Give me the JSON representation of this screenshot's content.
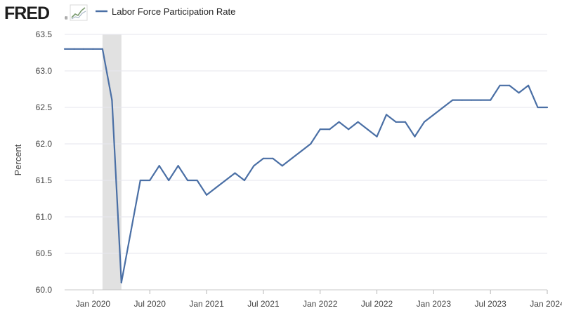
{
  "header": {
    "logo_text": "FRED",
    "logo_reg": "®"
  },
  "chart_data": {
    "type": "line",
    "title": "",
    "xlabel": "",
    "ylabel": "Percent",
    "ylim": [
      60.0,
      63.5
    ],
    "yticks": [
      "60.0",
      "60.5",
      "61.0",
      "61.5",
      "62.0",
      "62.5",
      "63.0",
      "63.5"
    ],
    "xticks": [
      {
        "label": "Jan 2020",
        "date": "2020-01"
      },
      {
        "label": "Jul 2020",
        "date": "2020-07"
      },
      {
        "label": "Jan 2021",
        "date": "2021-01"
      },
      {
        "label": "Jul 2021",
        "date": "2021-07"
      },
      {
        "label": "Jan 2022",
        "date": "2022-01"
      },
      {
        "label": "Jul 2022",
        "date": "2022-07"
      },
      {
        "label": "Jan 2023",
        "date": "2023-01"
      },
      {
        "label": "Jul 2023",
        "date": "2023-07"
      },
      {
        "label": "Jan 2024",
        "date": "2024-01"
      }
    ],
    "recession": {
      "start": "2020-02",
      "end": "2020-04"
    },
    "grid": true,
    "legend_position": "top-left",
    "colors": {
      "line": "#4a6fa5",
      "recession": "#e1e1e1",
      "grid": "#e6e6ee"
    },
    "series": [
      {
        "name": "Labor Force Participation Rate",
        "x": [
          "2019-10",
          "2019-11",
          "2019-12",
          "2020-01",
          "2020-02",
          "2020-03",
          "2020-04",
          "2020-05",
          "2020-06",
          "2020-07",
          "2020-08",
          "2020-09",
          "2020-10",
          "2020-11",
          "2020-12",
          "2021-01",
          "2021-02",
          "2021-03",
          "2021-04",
          "2021-05",
          "2021-06",
          "2021-07",
          "2021-08",
          "2021-09",
          "2021-10",
          "2021-11",
          "2021-12",
          "2022-01",
          "2022-02",
          "2022-03",
          "2022-04",
          "2022-05",
          "2022-06",
          "2022-07",
          "2022-08",
          "2022-09",
          "2022-10",
          "2022-11",
          "2022-12",
          "2023-01",
          "2023-02",
          "2023-03",
          "2023-04",
          "2023-05",
          "2023-06",
          "2023-07",
          "2023-08",
          "2023-09",
          "2023-10",
          "2023-11",
          "2023-12",
          "2024-01"
        ],
        "values": [
          63.3,
          63.3,
          63.3,
          63.3,
          63.3,
          62.6,
          60.1,
          60.8,
          61.5,
          61.5,
          61.7,
          61.5,
          61.7,
          61.5,
          61.5,
          61.3,
          61.4,
          61.5,
          61.6,
          61.5,
          61.7,
          61.8,
          61.8,
          61.7,
          61.8,
          61.9,
          62.0,
          62.2,
          62.2,
          62.3,
          62.2,
          62.3,
          62.2,
          62.1,
          62.4,
          62.3,
          62.3,
          62.1,
          62.3,
          62.4,
          62.5,
          62.6,
          62.6,
          62.6,
          62.6,
          62.6,
          62.8,
          62.8,
          62.7,
          62.8,
          62.5,
          62.5
        ]
      }
    ]
  }
}
